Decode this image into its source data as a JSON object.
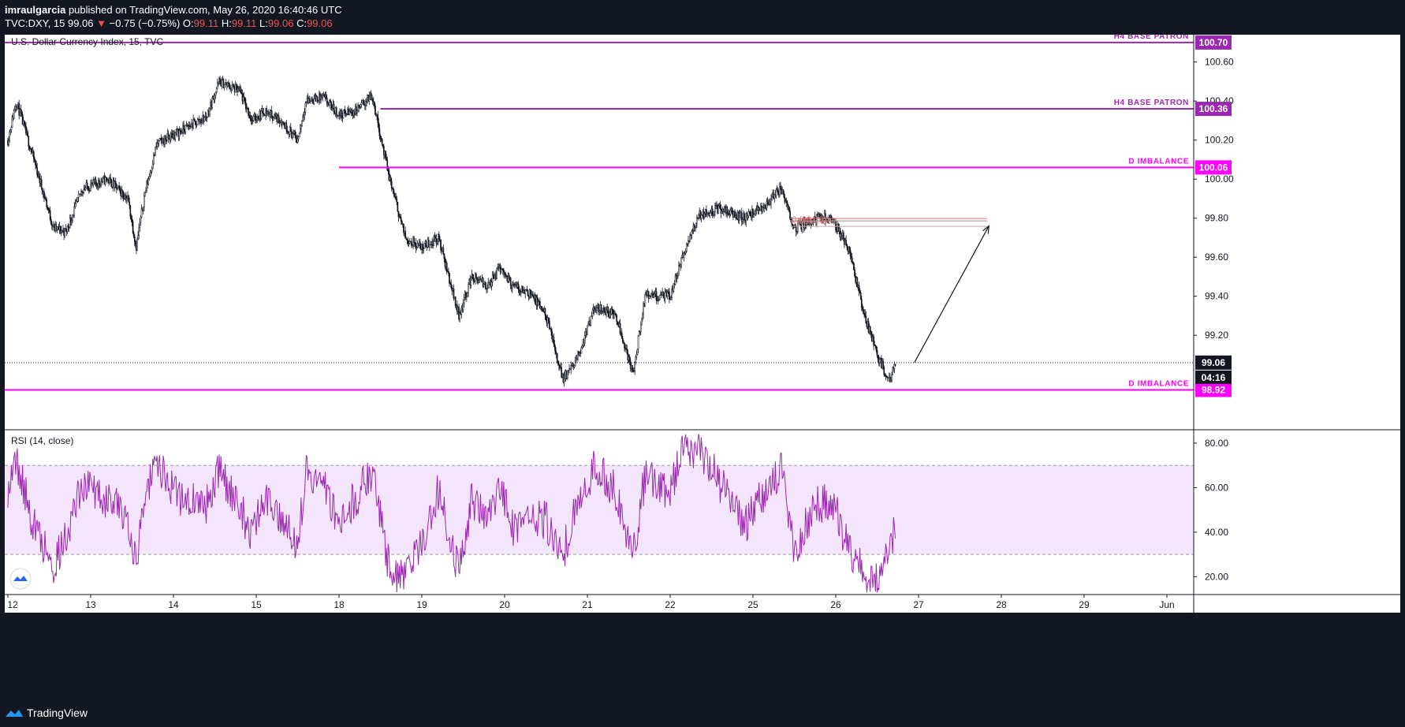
{
  "header": {
    "user": "imraulgarcia",
    "published": " published on TradingView.com, May 26, 2020 16:40:46 UTC",
    "symbol": "TVC:DXY, 15",
    "last": "99.06",
    "arrow": "▼",
    "change": "−0.75 (−0.75%)",
    "o_label": "O:",
    "o_value": "99.11",
    "h_label": "H:",
    "h_value": "99.11",
    "l_label": "L:",
    "l_value": "99.06",
    "c_label": "C:",
    "c_value": "99.06"
  },
  "footer": {
    "brand": "TradingView"
  },
  "colors": {
    "purple": "#9c27b0",
    "magenta": "#e91e63",
    "imbalance": "#ff00ff",
    "rsi_line": "#9c27b0",
    "rsi_band": "#f3e5fb",
    "text": "#131722",
    "frame": "#131722"
  },
  "chart_data": [
    {
      "type": "candlestick",
      "title": "U.S. Dollar Currency Index, 15, TVC",
      "ylim": [
        98.72,
        100.74
      ],
      "y_ticks": [
        99.2,
        99.4,
        99.6,
        99.8,
        100.0,
        100.2,
        100.4,
        100.6
      ],
      "x_ticks": [
        "12",
        "13",
        "14",
        "15",
        "18",
        "19",
        "20",
        "21",
        "22",
        "25",
        "26",
        "27",
        "28",
        "29",
        "Jun"
      ],
      "price_path": [
        {
          "x": 0.0,
          "y": 100.2
        },
        {
          "x": 0.1,
          "y": 100.4
        },
        {
          "x": 0.3,
          "y": 100.12
        },
        {
          "x": 0.55,
          "y": 99.75
        },
        {
          "x": 0.7,
          "y": 99.73
        },
        {
          "x": 0.9,
          "y": 99.95
        },
        {
          "x": 1.2,
          "y": 100.0
        },
        {
          "x": 1.45,
          "y": 99.9
        },
        {
          "x": 1.55,
          "y": 99.65
        },
        {
          "x": 1.65,
          "y": 99.92
        },
        {
          "x": 1.8,
          "y": 100.18
        },
        {
          "x": 2.1,
          "y": 100.25
        },
        {
          "x": 2.4,
          "y": 100.32
        },
        {
          "x": 2.55,
          "y": 100.5
        },
        {
          "x": 2.8,
          "y": 100.45
        },
        {
          "x": 2.95,
          "y": 100.3
        },
        {
          "x": 3.1,
          "y": 100.35
        },
        {
          "x": 3.3,
          "y": 100.3
        },
        {
          "x": 3.5,
          "y": 100.2
        },
        {
          "x": 3.6,
          "y": 100.4
        },
        {
          "x": 3.8,
          "y": 100.42
        },
        {
          "x": 4.0,
          "y": 100.33
        },
        {
          "x": 4.2,
          "y": 100.35
        },
        {
          "x": 4.4,
          "y": 100.43
        },
        {
          "x": 4.6,
          "y": 100.02
        },
        {
          "x": 4.8,
          "y": 99.7
        },
        {
          "x": 5.0,
          "y": 99.65
        },
        {
          "x": 5.2,
          "y": 99.7
        },
        {
          "x": 5.45,
          "y": 99.3
        },
        {
          "x": 5.6,
          "y": 99.5
        },
        {
          "x": 5.8,
          "y": 99.45
        },
        {
          "x": 5.95,
          "y": 99.55
        },
        {
          "x": 6.1,
          "y": 99.45
        },
        {
          "x": 6.3,
          "y": 99.42
        },
        {
          "x": 6.5,
          "y": 99.3
        },
        {
          "x": 6.7,
          "y": 98.98
        },
        {
          "x": 6.85,
          "y": 99.05
        },
        {
          "x": 7.1,
          "y": 99.35
        },
        {
          "x": 7.35,
          "y": 99.3
        },
        {
          "x": 7.55,
          "y": 99.0
        },
        {
          "x": 7.7,
          "y": 99.4
        },
        {
          "x": 8.0,
          "y": 99.4
        },
        {
          "x": 8.15,
          "y": 99.6
        },
        {
          "x": 8.35,
          "y": 99.82
        },
        {
          "x": 8.6,
          "y": 99.85
        },
        {
          "x": 8.9,
          "y": 99.8
        },
        {
          "x": 9.1,
          "y": 99.85
        },
        {
          "x": 9.35,
          "y": 99.95
        },
        {
          "x": 9.5,
          "y": 99.75
        },
        {
          "x": 9.75,
          "y": 99.8
        },
        {
          "x": 9.95,
          "y": 99.8
        },
        {
          "x": 10.15,
          "y": 99.65
        },
        {
          "x": 10.35,
          "y": 99.3
        },
        {
          "x": 10.5,
          "y": 99.1
        },
        {
          "x": 10.65,
          "y": 98.96
        },
        {
          "x": 10.72,
          "y": 99.06
        }
      ],
      "levels": [
        {
          "label": "H4 BASE PATRON",
          "value": 100.7,
          "tag": "100.70",
          "from_x": -0.1,
          "color_key": "purple"
        },
        {
          "label": "H4 BASE PATRON",
          "value": 100.36,
          "tag": "100.36",
          "from_x": 4.5,
          "color_key": "purple"
        },
        {
          "label": "D IMBALANCE",
          "value": 100.06,
          "tag": "100.06",
          "from_x": 4.0,
          "color_key": "imbalance"
        },
        {
          "label": "D IMBALANCE",
          "value": 98.92,
          "tag": "98.92",
          "from_x": -0.1,
          "color_key": "imbalance"
        }
      ],
      "last_price": {
        "value": 99.06,
        "tag": "99.06",
        "countdown": "04:16"
      },
      "fib_zone": {
        "label": "0 (99.79)",
        "from_x": 9.45,
        "to_x": 10.0,
        "y1": 99.79,
        "y2": 99.77
      },
      "arrow": {
        "x1": 10.95,
        "y1": 99.06,
        "x2": 11.85,
        "y2": 99.76
      }
    },
    {
      "type": "line",
      "title": "RSI (14, close)",
      "ylim": [
        12,
        86
      ],
      "y_ticks": [
        20.0,
        40.0,
        60.0,
        80.0
      ],
      "band": [
        30,
        70
      ],
      "rsi_path": [
        {
          "x": 0.0,
          "y": 60
        },
        {
          "x": 0.1,
          "y": 72
        },
        {
          "x": 0.3,
          "y": 45
        },
        {
          "x": 0.55,
          "y": 25
        },
        {
          "x": 0.7,
          "y": 38
        },
        {
          "x": 0.9,
          "y": 62
        },
        {
          "x": 1.2,
          "y": 55
        },
        {
          "x": 1.45,
          "y": 48
        },
        {
          "x": 1.55,
          "y": 24
        },
        {
          "x": 1.65,
          "y": 58
        },
        {
          "x": 1.8,
          "y": 70
        },
        {
          "x": 2.1,
          "y": 55
        },
        {
          "x": 2.4,
          "y": 52
        },
        {
          "x": 2.55,
          "y": 68
        },
        {
          "x": 2.8,
          "y": 50
        },
        {
          "x": 2.95,
          "y": 40
        },
        {
          "x": 3.1,
          "y": 55
        },
        {
          "x": 3.3,
          "y": 48
        },
        {
          "x": 3.5,
          "y": 35
        },
        {
          "x": 3.6,
          "y": 66
        },
        {
          "x": 3.8,
          "y": 62
        },
        {
          "x": 4.0,
          "y": 45
        },
        {
          "x": 4.2,
          "y": 55
        },
        {
          "x": 4.4,
          "y": 68
        },
        {
          "x": 4.6,
          "y": 25
        },
        {
          "x": 4.8,
          "y": 18
        },
        {
          "x": 5.0,
          "y": 35
        },
        {
          "x": 5.2,
          "y": 58
        },
        {
          "x": 5.45,
          "y": 22
        },
        {
          "x": 5.6,
          "y": 55
        },
        {
          "x": 5.8,
          "y": 48
        },
        {
          "x": 5.95,
          "y": 62
        },
        {
          "x": 6.1,
          "y": 42
        },
        {
          "x": 6.3,
          "y": 48
        },
        {
          "x": 6.5,
          "y": 45
        },
        {
          "x": 6.7,
          "y": 30
        },
        {
          "x": 6.85,
          "y": 48
        },
        {
          "x": 7.1,
          "y": 70
        },
        {
          "x": 7.35,
          "y": 58
        },
        {
          "x": 7.55,
          "y": 30
        },
        {
          "x": 7.7,
          "y": 66
        },
        {
          "x": 8.0,
          "y": 58
        },
        {
          "x": 8.15,
          "y": 76
        },
        {
          "x": 8.35,
          "y": 78
        },
        {
          "x": 8.6,
          "y": 62
        },
        {
          "x": 8.9,
          "y": 42
        },
        {
          "x": 9.1,
          "y": 56
        },
        {
          "x": 9.35,
          "y": 70
        },
        {
          "x": 9.5,
          "y": 32
        },
        {
          "x": 9.75,
          "y": 52
        },
        {
          "x": 9.95,
          "y": 55
        },
        {
          "x": 10.15,
          "y": 32
        },
        {
          "x": 10.35,
          "y": 22
        },
        {
          "x": 10.5,
          "y": 18
        },
        {
          "x": 10.65,
          "y": 30
        },
        {
          "x": 10.72,
          "y": 42
        }
      ]
    }
  ]
}
